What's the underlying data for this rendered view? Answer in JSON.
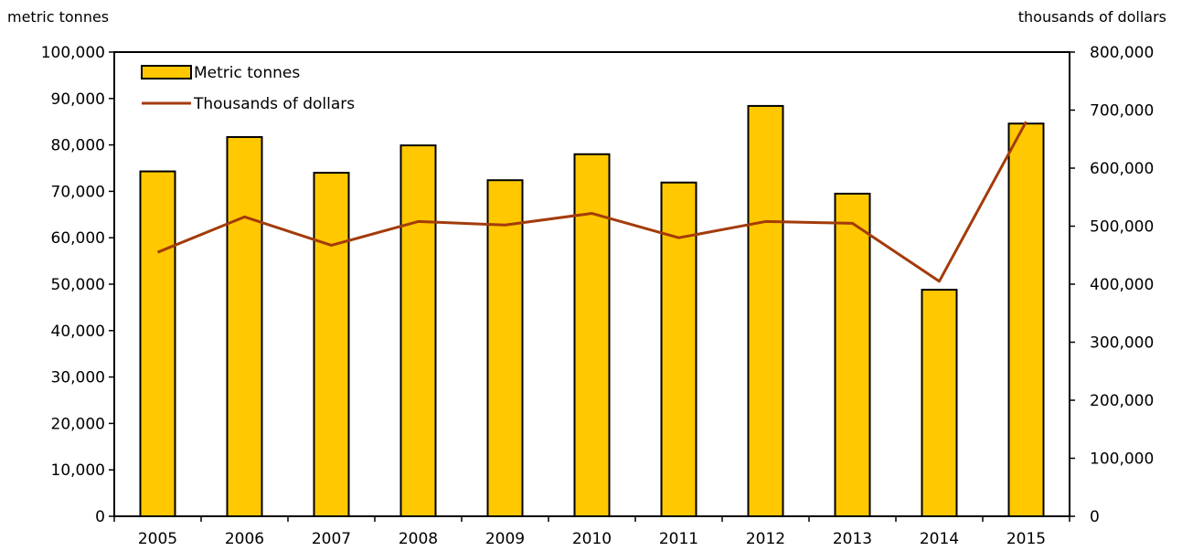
{
  "chart_data": {
    "type": "bar",
    "categories": [
      "2005",
      "2006",
      "2007",
      "2008",
      "2009",
      "2010",
      "2011",
      "2012",
      "2013",
      "2014",
      "2015"
    ],
    "series": [
      {
        "name": "Metric tonnes",
        "type": "bar",
        "axis": "left",
        "color": "#FFC800",
        "values": [
          74300,
          81700,
          74000,
          79900,
          72400,
          78000,
          71900,
          88400,
          69500,
          48800,
          84600
        ]
      },
      {
        "name": "Thousands of dollars",
        "type": "line",
        "axis": "right",
        "color": "#A33B0A",
        "values": [
          455000,
          516000,
          467000,
          508000,
          502000,
          522000,
          480000,
          508000,
          505000,
          405000,
          680000
        ]
      }
    ],
    "left_axis": {
      "label": "metric tonnes",
      "min": 0,
      "max": 100000,
      "step": 10000,
      "tick_labels": [
        "0",
        "10,000",
        "20,000",
        "30,000",
        "40,000",
        "50,000",
        "60,000",
        "70,000",
        "80,000",
        "90,000",
        "100,000"
      ]
    },
    "right_axis": {
      "label": "thousands of dollars",
      "min": 0,
      "max": 800000,
      "step": 100000,
      "tick_labels": [
        "0",
        "100,000",
        "200,000",
        "300,000",
        "400,000",
        "500,000",
        "600,000",
        "700,000",
        "800,000"
      ]
    },
    "grid": false,
    "legend_position": "top-left"
  }
}
